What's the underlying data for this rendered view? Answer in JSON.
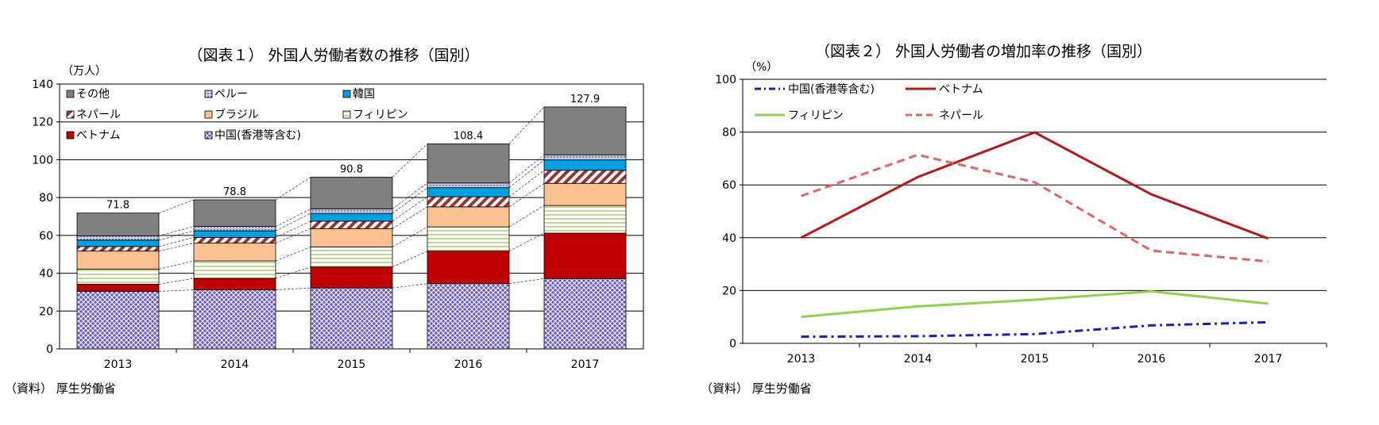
{
  "figure1": {
    "title": "（図表１） 外国人労働者数の推移（国別）",
    "unit": "（万人）",
    "source": "（資料） 厚生労働省",
    "chart_data": {
      "type": "bar",
      "stacked": true,
      "categories": [
        "2013",
        "2014",
        "2015",
        "2016",
        "2017"
      ],
      "ylim": [
        0,
        140
      ],
      "yticks": [
        0,
        20,
        40,
        60,
        80,
        100,
        120,
        140
      ],
      "grid": true,
      "series": [
        {
          "name": "中国(香港等含む)",
          "values": [
            30.4,
            31.2,
            32.2,
            34.5,
            37.2
          ],
          "color": "#7b6fd6",
          "pattern": "crosshatch"
        },
        {
          "name": "ベトナム",
          "values": [
            3.8,
            6.1,
            11.1,
            17.2,
            24.0
          ],
          "color": "#c00000",
          "pattern": "solid"
        },
        {
          "name": "フィリピン",
          "values": [
            8.0,
            9.2,
            10.6,
            12.8,
            14.6
          ],
          "color": "#c4d79b",
          "pattern": "hstripe"
        },
        {
          "name": "ブラジル",
          "values": [
            9.5,
            9.4,
            9.7,
            10.6,
            11.7
          ],
          "color": "#fac090",
          "pattern": "solid"
        },
        {
          "name": "ネパール",
          "values": [
            2.4,
            3.0,
            3.9,
            5.3,
            6.9
          ],
          "color": "#943634",
          "pattern": "diagonal"
        },
        {
          "name": "韓国",
          "values": [
            3.4,
            3.5,
            4.1,
            4.8,
            5.5
          ],
          "color": "#00a0e0",
          "pattern": "solid"
        },
        {
          "name": "ペルー",
          "values": [
            2.3,
            2.3,
            2.4,
            2.5,
            2.7
          ],
          "color": "#a6a6c8",
          "pattern": "dots"
        },
        {
          "name": "その他",
          "values": [
            12.0,
            14.1,
            16.8,
            20.7,
            25.3
          ],
          "color": "#808080",
          "pattern": "solid"
        }
      ],
      "totals": [
        71.8,
        78.8,
        90.8,
        108.4,
        127.9
      ],
      "total_labels": [
        "71.8",
        "78.8",
        "90.8",
        "108.4",
        "127.9"
      ],
      "legend_placement": "top-left inside"
    }
  },
  "figure2": {
    "title": "（図表２） 外国人労働者の増加率の推移（国別）",
    "unit": "（%）",
    "source": "（資料） 厚生労働省",
    "chart_data": {
      "type": "line",
      "categories": [
        "2013",
        "2014",
        "2015",
        "2016",
        "2017"
      ],
      "ylim": [
        0,
        100
      ],
      "yticks": [
        0,
        20,
        40,
        60,
        80,
        100
      ],
      "grid": true,
      "series": [
        {
          "name": "中国(香港等含む)",
          "values": [
            2.5,
            2.7,
            3.5,
            6.8,
            8.0
          ],
          "color": "#1f1fb4",
          "style": "dashdot"
        },
        {
          "name": "ベトナム",
          "values": [
            40.0,
            63.0,
            79.9,
            56.4,
            39.7
          ],
          "color": "#b31b1b",
          "style": "solid"
        },
        {
          "name": "フィリピン",
          "values": [
            10.0,
            14.0,
            16.5,
            19.7,
            15.0
          ],
          "color": "#92d050",
          "style": "solid"
        },
        {
          "name": "ネパール",
          "values": [
            55.8,
            71.4,
            61.0,
            35.1,
            31.0
          ],
          "color": "#e06666",
          "style": "dashed"
        }
      ],
      "legend_placement": "top-left inside"
    }
  }
}
